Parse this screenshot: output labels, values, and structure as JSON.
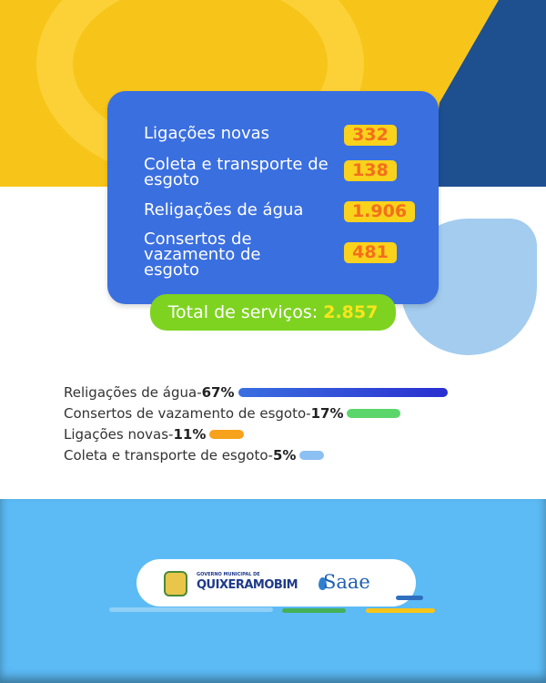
{
  "summary": {
    "items": [
      {
        "label": "Ligações novas",
        "value": "332"
      },
      {
        "label": "Coleta e transporte de esgoto",
        "value": "138"
      },
      {
        "label": "Religações de água",
        "value": "1.906"
      },
      {
        "label": "Consertos de vazamento de esgoto",
        "value": "481"
      }
    ],
    "total_label": "Total de serviços:",
    "total_value": "2.857"
  },
  "chart_data": {
    "type": "bar",
    "orientation": "horizontal",
    "categories": [
      "Religações de água",
      "Consertos de vazamento de esgoto",
      "Ligações novas",
      "Coleta e transporte de esgoto"
    ],
    "values": [
      67,
      17,
      11,
      5
    ],
    "value_labels": [
      "67%",
      "17%",
      "11%",
      "5%"
    ],
    "colors": [
      "#2a2fd0",
      "#5ad66a",
      "#f7a21c",
      "#8cc0f2"
    ],
    "title": "",
    "xlabel": "",
    "ylabel": "",
    "xlim": [
      0,
      67
    ],
    "grid": false,
    "legend": "none"
  },
  "footer": {
    "gov_small": "GOVERNO MUNICIPAL DE",
    "gov_name": "QUIXERAMOBIM",
    "saae": "Saae"
  },
  "colors": {
    "yellow": "#f7c51a",
    "card_blue": "#3a6fe0",
    "green": "#7ed321",
    "sky": "#5cbbf5",
    "navy": "#1e4f8f"
  }
}
